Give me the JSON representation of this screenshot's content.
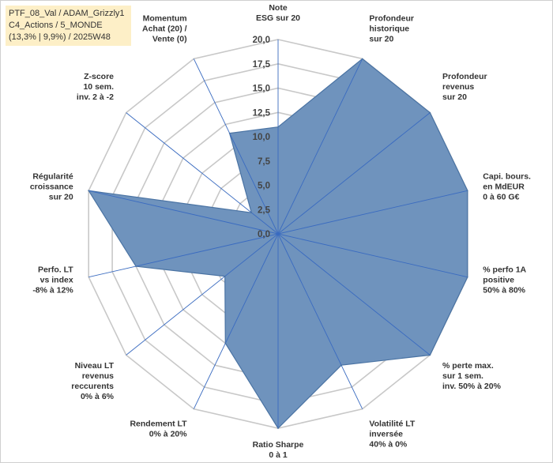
{
  "header": {
    "lines": [
      "PTF_08_Val / ADAM_Grizzly1",
      "C4_Actions / 5_MONDE",
      "(13,3% | 9,9%) / 2025W48"
    ]
  },
  "chart_data": {
    "type": "radar",
    "axes": [
      [
        "Note",
        "ESG sur 20"
      ],
      [
        "Profondeur",
        "historique",
        "sur 20"
      ],
      [
        "Profondeur",
        "revenus",
        "sur 20"
      ],
      [
        "Capi. bours.",
        "en MdEUR",
        "0 à 60 G€"
      ],
      [
        "% perfo 1A",
        "positive",
        "50% à 80%"
      ],
      [
        "% perte max.",
        "sur 1 sem.",
        "inv. 50% à 20%"
      ],
      [
        "Volatilité LT",
        "inversée",
        "40% à 0%"
      ],
      [
        "Ratio Sharpe",
        "0 à 1"
      ],
      [
        "Rendement LT",
        "0% à 20%"
      ],
      [
        "Niveau LT",
        "revenus",
        "reccurents",
        "0% à 6%"
      ],
      [
        "Perfo. LT",
        "vs index",
        "-8% à 12%"
      ],
      [
        "Régularité",
        "croissance",
        "sur 20"
      ],
      [
        "Z-score",
        "10 sem.",
        "inv. 2 à -2"
      ],
      [
        "Momentum",
        "Achat (20) /",
        "Vente (0)"
      ]
    ],
    "values": [
      11,
      20,
      20,
      20,
      20,
      20,
      15,
      20,
      12.5,
      7,
      15,
      20,
      3.5,
      11.5
    ],
    "rlim": [
      0,
      20
    ],
    "ticks": [
      "0,0",
      "2,5",
      "5,0",
      "7,5",
      "10,0",
      "12,5",
      "15,0",
      "17,5",
      "20,0"
    ],
    "grid": true,
    "colors": {
      "fill": "#6f93bd",
      "stroke": "#4a73a3",
      "grid": "#c8c8c8",
      "spoke": "#3a6bc0"
    }
  }
}
